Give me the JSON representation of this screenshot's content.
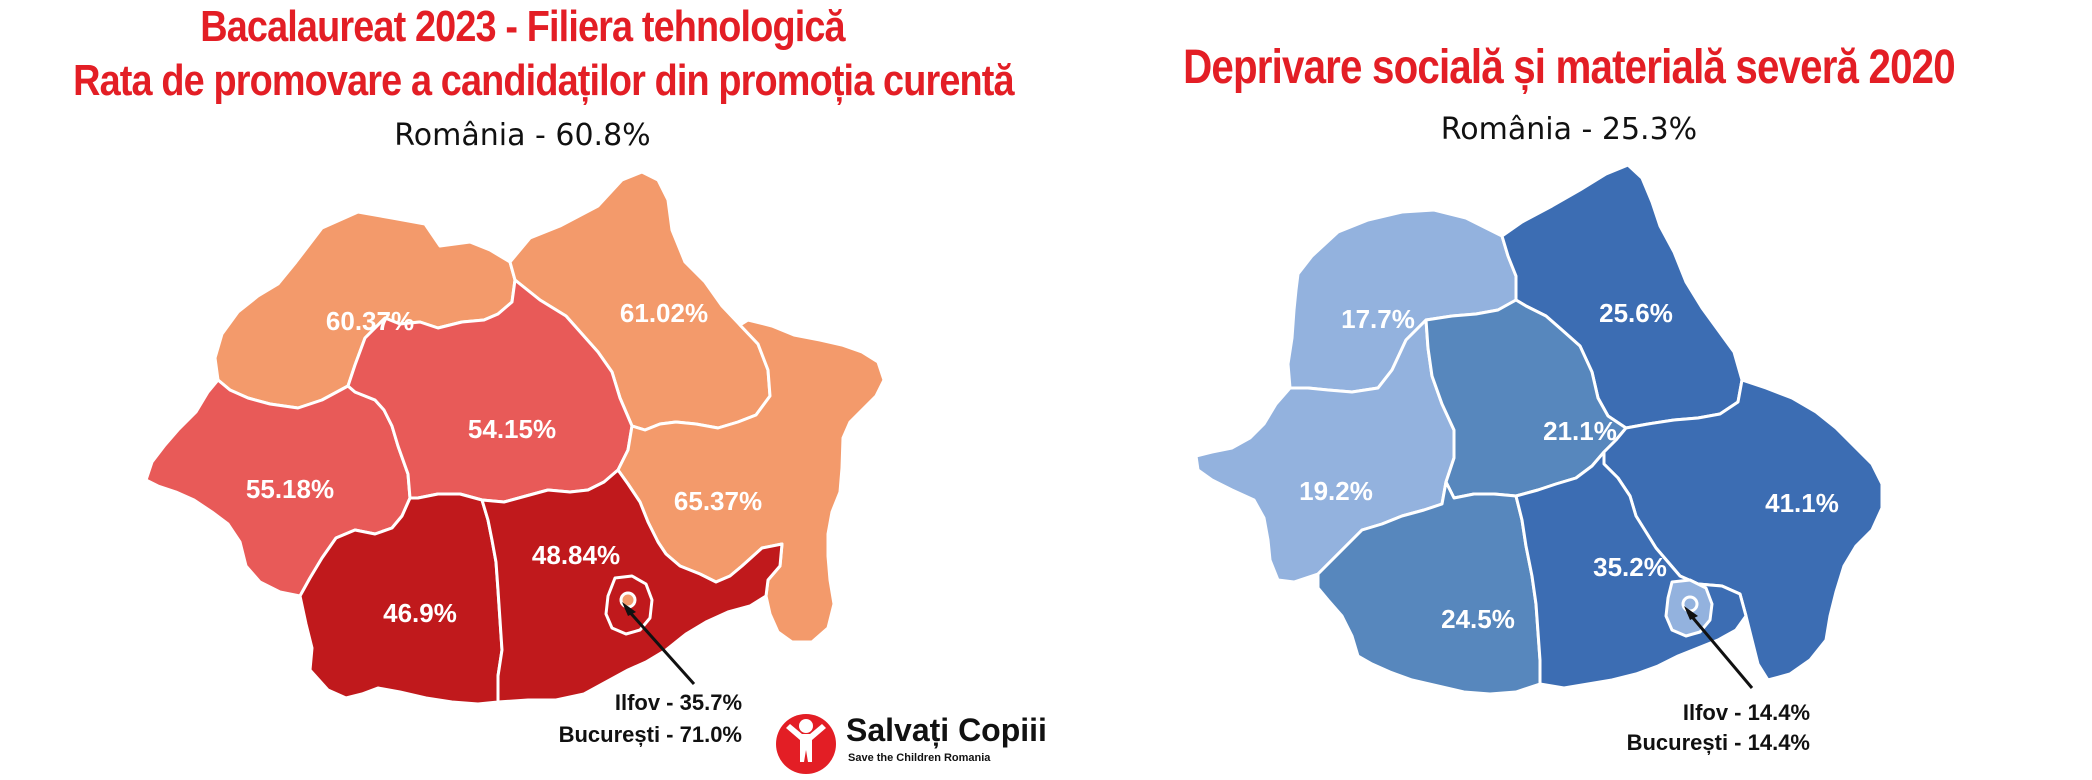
{
  "left": {
    "title_line1": "Bacalaureat 2023 - Filiera tehnologică",
    "title_line2": "Rata de promovare a candidaților din promoția curentă",
    "national": "România - 60.8%",
    "regions": [
      {
        "id": "nord-vest",
        "value": "60.37%",
        "color": "#f39a6b"
      },
      {
        "id": "nord-est",
        "value": "61.02%",
        "color": "#f39a6b"
      },
      {
        "id": "vest",
        "value": "55.18%",
        "color": "#e85a58"
      },
      {
        "id": "centru",
        "value": "54.15%",
        "color": "#e85a58"
      },
      {
        "id": "sud-est",
        "value": "65.37%",
        "color": "#f39a6b"
      },
      {
        "id": "sud-vest",
        "value": "46.9%",
        "color": "#c0191c"
      },
      {
        "id": "sud-muntenia",
        "value": "48.84%",
        "color": "#c0191c"
      },
      {
        "id": "ilfov",
        "value": "35.7%",
        "color": "#c0191c"
      },
      {
        "id": "bucuresti",
        "value": "71.0%",
        "color": "#f39a6b"
      }
    ],
    "note_ilfov": "Ilfov - 35.7%",
    "note_bucuresti": "București - 71.0%"
  },
  "right": {
    "title": "Deprivare socială și materială severă 2020",
    "national": "România - 25.3%",
    "regions": [
      {
        "id": "nord-vest",
        "value": "17.7%",
        "color": "#93b2de"
      },
      {
        "id": "nord-est",
        "value": "25.6%",
        "color": "#3c6db3"
      },
      {
        "id": "vest",
        "value": "19.2%",
        "color": "#93b2de"
      },
      {
        "id": "centru",
        "value": "21.1%",
        "color": "#5787bd"
      },
      {
        "id": "sud-est",
        "value": "41.1%",
        "color": "#3c6db3"
      },
      {
        "id": "sud-vest",
        "value": "24.5%",
        "color": "#5787bd"
      },
      {
        "id": "sud-muntenia",
        "value": "35.2%",
        "color": "#3c6db3"
      },
      {
        "id": "ilfov",
        "value": "14.4%",
        "color": "#93b2de"
      },
      {
        "id": "bucuresti",
        "value": "14.4%",
        "color": "#93b2de"
      }
    ],
    "note_ilfov": "Ilfov - 14.4%",
    "note_bucuresti": "București - 14.4%"
  },
  "logo": {
    "name": "Salvați Copiii",
    "subtitle": "Save the Children Romania",
    "color": "#e31e25"
  }
}
